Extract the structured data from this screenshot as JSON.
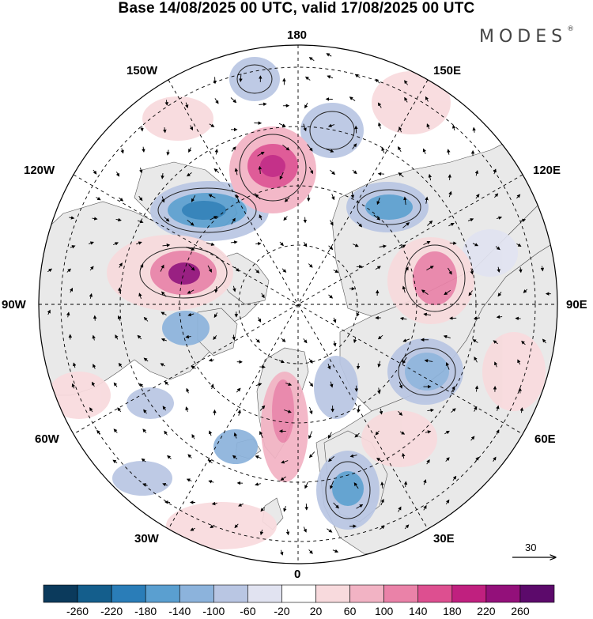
{
  "title": "Base 14/08/2025 00 UTC, valid 17/08/2025 00 UTC",
  "brand": {
    "name": "MODES",
    "mark": "®"
  },
  "longitude_labels": {
    "n180": "180",
    "e150": "150E",
    "e120": "120E",
    "e90": "90E",
    "e60": "60E",
    "e30": "30E",
    "n0": "0",
    "w30": "30W",
    "w60": "60W",
    "w90": "90W",
    "w120": "120W",
    "w150": "150W"
  },
  "vector_scale": {
    "value": "30"
  },
  "colorbar": {
    "ticks": [
      "-260",
      "-220",
      "-180",
      "-140",
      "-100",
      "-60",
      "-20",
      "20",
      "60",
      "100",
      "140",
      "180",
      "220",
      "260"
    ],
    "colors": [
      "#0b3a5c",
      "#145e8c",
      "#2a7db8",
      "#5a9fd0",
      "#8cb3dc",
      "#b9c6e3",
      "#e1e3f1",
      "#ffffff",
      "#f8dadd",
      "#f2b3c4",
      "#ea82a8",
      "#dd4f90",
      "#c0207f",
      "#93107a",
      "#5c0a6b"
    ]
  },
  "colors": {
    "land": "#e9e9e9",
    "ocean": "#ffffff",
    "arrow": "#000000",
    "grid": "#000000"
  },
  "icons": {
    "arrow": "wind-vector-arrow"
  }
}
